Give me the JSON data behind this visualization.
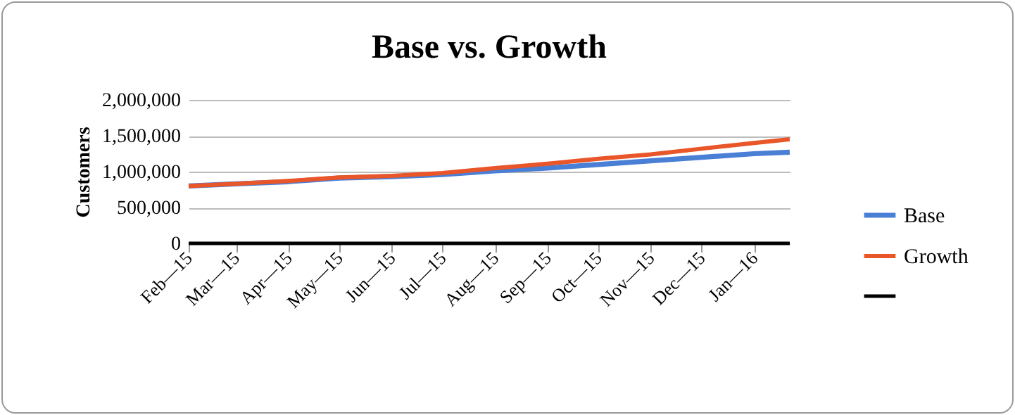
{
  "chart_data": {
    "type": "line",
    "title": "Base vs. Growth",
    "ylabel": "Customers",
    "x": [
      "2015-02-01",
      "2015-03-01",
      "2015-04-01",
      "2015-05-01",
      "2015-06-01",
      "2015-07-01",
      "2015-08-01",
      "2015-09-01",
      "2015-10-01",
      "2015-11-01",
      "2015-12-01",
      "2016-01-01",
      "2016-01-22"
    ],
    "series": [
      {
        "name": "Base",
        "color": "#4a7fd6",
        "values": [
          800000,
          830000,
          860000,
          910000,
          930000,
          960000,
          1010000,
          1050000,
          1100000,
          1150000,
          1200000,
          1250000,
          1270000
        ]
      },
      {
        "name": "Growth",
        "color": "#e8562a",
        "values": [
          800000,
          830000,
          870000,
          920000,
          940000,
          980000,
          1050000,
          1110000,
          1180000,
          1240000,
          1320000,
          1400000,
          1450000
        ]
      },
      {
        "color": "#000000",
        "values": [
          0,
          0,
          0,
          0,
          0,
          0,
          0,
          0,
          0,
          0,
          0,
          0,
          0
        ]
      }
    ],
    "xlim": [
      "2015-02-01",
      "2016-01-22"
    ],
    "xticks": [
      {
        "value": "2015-02-01",
        "label": "Feb—15"
      },
      {
        "value": "2015-03-01",
        "label": "Mar—15"
      },
      {
        "value": "2015-04-01",
        "label": "Apr—15"
      },
      {
        "value": "2015-05-01",
        "label": "May—15"
      },
      {
        "value": "2015-06-01",
        "label": "Jun—15"
      },
      {
        "value": "2015-07-01",
        "label": "Jul—15"
      },
      {
        "value": "2015-08-01",
        "label": "Aug—15"
      },
      {
        "value": "2015-09-01",
        "label": "Sep—15"
      },
      {
        "value": "2015-10-01",
        "label": "Oct—15"
      },
      {
        "value": "2015-11-01",
        "label": "Nov—15"
      },
      {
        "value": "2015-12-01",
        "label": "Dec—15"
      },
      {
        "value": "2016-01-01",
        "label": "Jan—16"
      }
    ],
    "ylim": [
      0,
      2000000
    ],
    "yticks": [
      {
        "value": 0,
        "label": "0"
      },
      {
        "value": 500000,
        "label": "500,000"
      },
      {
        "value": 1000000,
        "label": "1,000,000"
      },
      {
        "value": 1500000,
        "label": "1,500,000"
      },
      {
        "value": 2000000,
        "label": "2,000,000"
      }
    ],
    "grid": "y",
    "legend": "right",
    "marker": "none",
    "line_style": "solid"
  }
}
